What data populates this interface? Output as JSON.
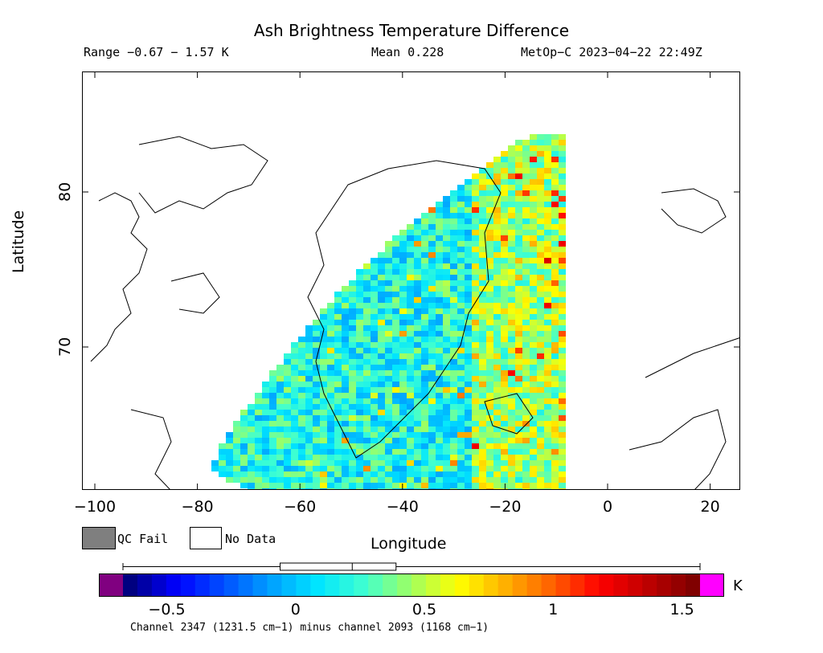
{
  "header": {
    "title": "Ash Brightness Temperature Difference",
    "range": "Range −0.67 − 1.57 K",
    "mean": "Mean 0.228",
    "satellite_time": "MetOp−C 2023−04−22 22:49Z"
  },
  "legend": {
    "qc_fail": "QC Fail",
    "no_data": "No Data",
    "qc_color": "#7f7f7f",
    "nodata_color": "#ffffff"
  },
  "chart_data": {
    "type": "heatmap",
    "title": "Ash Brightness Temperature Difference",
    "xlabel": "Longitude",
    "ylabel": "Latitude",
    "xlim": [
      -102,
      27
    ],
    "ylim": [
      59,
      86
    ],
    "xticks": [
      -100,
      -80,
      -60,
      -40,
      -20,
      0,
      20
    ],
    "xtick_labels": [
      "−100",
      "−80",
      "−60",
      "−40",
      "−20",
      "0",
      "20"
    ],
    "yticks": [
      70,
      80
    ],
    "ytick_labels": [
      "70",
      "80"
    ],
    "colorbar": {
      "label": "K",
      "range": [
        -0.67,
        1.57
      ],
      "ticks": [
        -0.5,
        0,
        0.5,
        1,
        1.5
      ],
      "tick_labels": [
        "−0.5",
        "0",
        "0.5",
        "1",
        "1.5"
      ],
      "colors": [
        "#800080",
        "#000080",
        "#0000ff",
        "#0050ff",
        "#00a0ff",
        "#00e5ff",
        "#40ffd0",
        "#a0ff60",
        "#ffff00",
        "#ffb000",
        "#ff6000",
        "#ff0000",
        "#c00000",
        "#800000",
        "#ff00ff"
      ],
      "box_plot": {
        "min": -0.67,
        "q1": -0.06,
        "median": 0.22,
        "q3": 0.39,
        "max": 1.57
      }
    },
    "note": "Channel 2347 (1231.5 cm−1) minus channel 2093 (1168 cm−1)"
  }
}
